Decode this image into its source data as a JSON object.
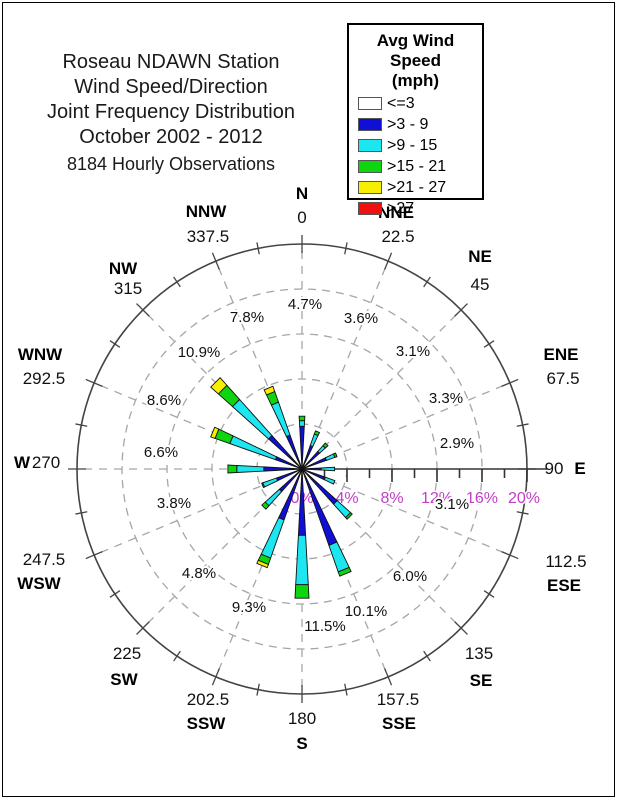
{
  "chart_data": {
    "type": "wind-rose-stacked-bar",
    "title_lines": [
      "Roseau NDAWN Station",
      "Wind Speed/Direction",
      "Joint Frequency Distribution",
      "October 2002 - 2012"
    ],
    "subtitle": "8184 Hourly Observations",
    "legend": {
      "title": "Avg Wind Speed",
      "units": "(mph)",
      "items": [
        {
          "label": "<=3",
          "color": "#ffffff"
        },
        {
          "label": ">3 - 9",
          "color": "#0f0fd6"
        },
        {
          "label": ">9 - 15",
          "color": "#1ce6f0"
        },
        {
          "label": ">15 - 21",
          "color": "#0ed60e"
        },
        {
          "label": ">21 - 27",
          "color": "#f8ee00"
        },
        {
          "label": ">27",
          "color": "#f01010"
        }
      ]
    },
    "radial_axis": {
      "direction": "E",
      "max_pct": 20,
      "ring_step_pct": 4,
      "minor_tick_step_pct": 2,
      "labels": [
        "0%",
        "4%",
        "8%",
        "12%",
        "16%",
        "20%"
      ],
      "values": [
        0,
        4,
        8,
        12,
        16,
        20
      ],
      "label_color": "#c03fc4"
    },
    "speed_bins": [
      "<=3",
      ">3 - 9",
      ">9 - 15",
      ">15 - 21",
      ">21 - 27",
      ">27"
    ],
    "directions": [
      {
        "name": "N",
        "degrees_label": "0",
        "angle_deg": 0,
        "total_pct": 4.7,
        "total_label": "4.7%",
        "segments_pct": [
          0,
          3.8,
          0.5,
          0.4,
          0,
          0
        ]
      },
      {
        "name": "NNE",
        "degrees_label": "22.5",
        "angle_deg": 22.5,
        "total_pct": 3.6,
        "total_label": "3.6%",
        "segments_pct": [
          0,
          2.2,
          1.1,
          0.3,
          0,
          0
        ]
      },
      {
        "name": "NE",
        "degrees_label": "45",
        "angle_deg": 45,
        "total_pct": 3.1,
        "total_label": "3.1%",
        "segments_pct": [
          0,
          2.1,
          0.7,
          0.3,
          0,
          0
        ]
      },
      {
        "name": "ENE",
        "degrees_label": "67.5",
        "angle_deg": 67.5,
        "total_pct": 3.3,
        "total_label": "3.3%",
        "segments_pct": [
          0,
          2.3,
          0.8,
          0.2,
          0,
          0
        ]
      },
      {
        "name": "E",
        "degrees_label": "90",
        "angle_deg": 90,
        "total_pct": 2.9,
        "total_label": "2.9%",
        "segments_pct": [
          0,
          1.7,
          1.2,
          0,
          0,
          0
        ]
      },
      {
        "name": "ESE",
        "degrees_label": "112.5",
        "angle_deg": 112.5,
        "total_pct": 3.1,
        "total_label": "3.1%",
        "segments_pct": [
          0,
          2.2,
          0.9,
          0,
          0,
          0
        ]
      },
      {
        "name": "SE",
        "degrees_label": "135",
        "angle_deg": 135,
        "total_pct": 6.0,
        "total_label": "6.0%",
        "segments_pct": [
          0,
          4.2,
          1.6,
          0.2,
          0,
          0
        ]
      },
      {
        "name": "SSE",
        "degrees_label": "157.5",
        "angle_deg": 157.5,
        "total_pct": 10.1,
        "total_label": "10.1%",
        "segments_pct": [
          0,
          7.2,
          2.5,
          0.4,
          0,
          0
        ]
      },
      {
        "name": "S",
        "degrees_label": "180",
        "angle_deg": 180,
        "total_pct": 11.5,
        "total_label": "11.5%",
        "segments_pct": [
          0,
          5.9,
          4.4,
          1.2,
          0,
          0
        ]
      },
      {
        "name": "SSW",
        "degrees_label": "202.5",
        "angle_deg": 202.5,
        "total_pct": 9.3,
        "total_label": "9.3%",
        "segments_pct": [
          0,
          4.8,
          3.6,
          0.6,
          0.3,
          0
        ]
      },
      {
        "name": "SW",
        "degrees_label": "225",
        "angle_deg": 225,
        "total_pct": 4.8,
        "total_label": "4.8%",
        "segments_pct": [
          0,
          2.7,
          1.7,
          0.4,
          0,
          0
        ]
      },
      {
        "name": "WSW",
        "degrees_label": "247.5",
        "angle_deg": 247.5,
        "total_pct": 3.8,
        "total_label": "3.8%",
        "segments_pct": [
          0,
          2.4,
          1.3,
          0.1,
          0,
          0
        ]
      },
      {
        "name": "W",
        "degrees_label": "270",
        "angle_deg": 270,
        "total_pct": 6.6,
        "total_label": "6.6%",
        "segments_pct": [
          0,
          3.4,
          2.4,
          0.8,
          0,
          0
        ]
      },
      {
        "name": "WNW",
        "degrees_label": "292.5",
        "angle_deg": 292.5,
        "total_pct": 8.6,
        "total_label": "8.6%",
        "segments_pct": [
          0,
          2.5,
          4.3,
          1.4,
          0.4,
          0
        ]
      },
      {
        "name": "NW",
        "degrees_label": "315",
        "angle_deg": 315,
        "total_pct": 10.9,
        "total_label": "10.9%",
        "segments_pct": [
          0,
          4.0,
          4.3,
          1.7,
          0.9,
          0
        ]
      },
      {
        "name": "NNW",
        "degrees_label": "337.5",
        "angle_deg": 337.5,
        "total_pct": 7.8,
        "total_label": "7.8%",
        "segments_pct": [
          0,
          3.2,
          3.1,
          1.0,
          0.5,
          0
        ]
      }
    ]
  }
}
